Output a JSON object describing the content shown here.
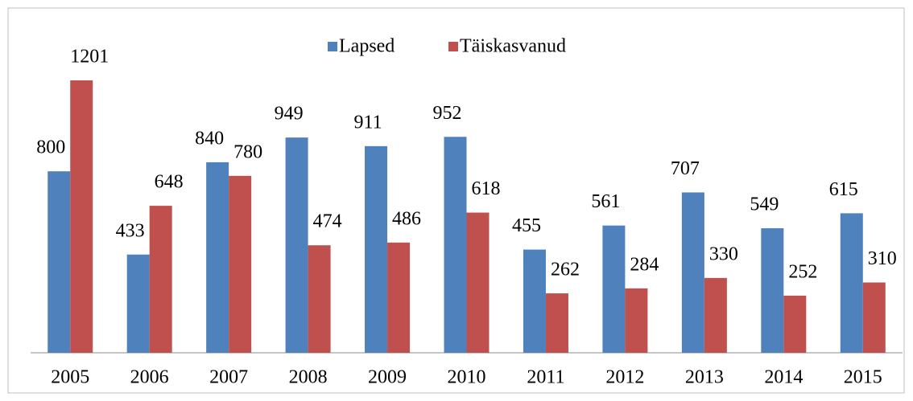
{
  "chart_data": {
    "type": "bar",
    "categories": [
      "2005",
      "2006",
      "2007",
      "2008",
      "2009",
      "2010",
      "2011",
      "2012",
      "2013",
      "2014",
      "2015"
    ],
    "series": [
      {
        "name": "Lapsed",
        "color": "#4f81bd",
        "values": [
          800,
          433,
          840,
          949,
          911,
          952,
          455,
          561,
          707,
          549,
          615
        ]
      },
      {
        "name": "Täiskasvanud",
        "color": "#c0504d",
        "values": [
          1201,
          648,
          780,
          474,
          486,
          618,
          262,
          284,
          330,
          252,
          310
        ]
      }
    ],
    "legend": "top"
  }
}
